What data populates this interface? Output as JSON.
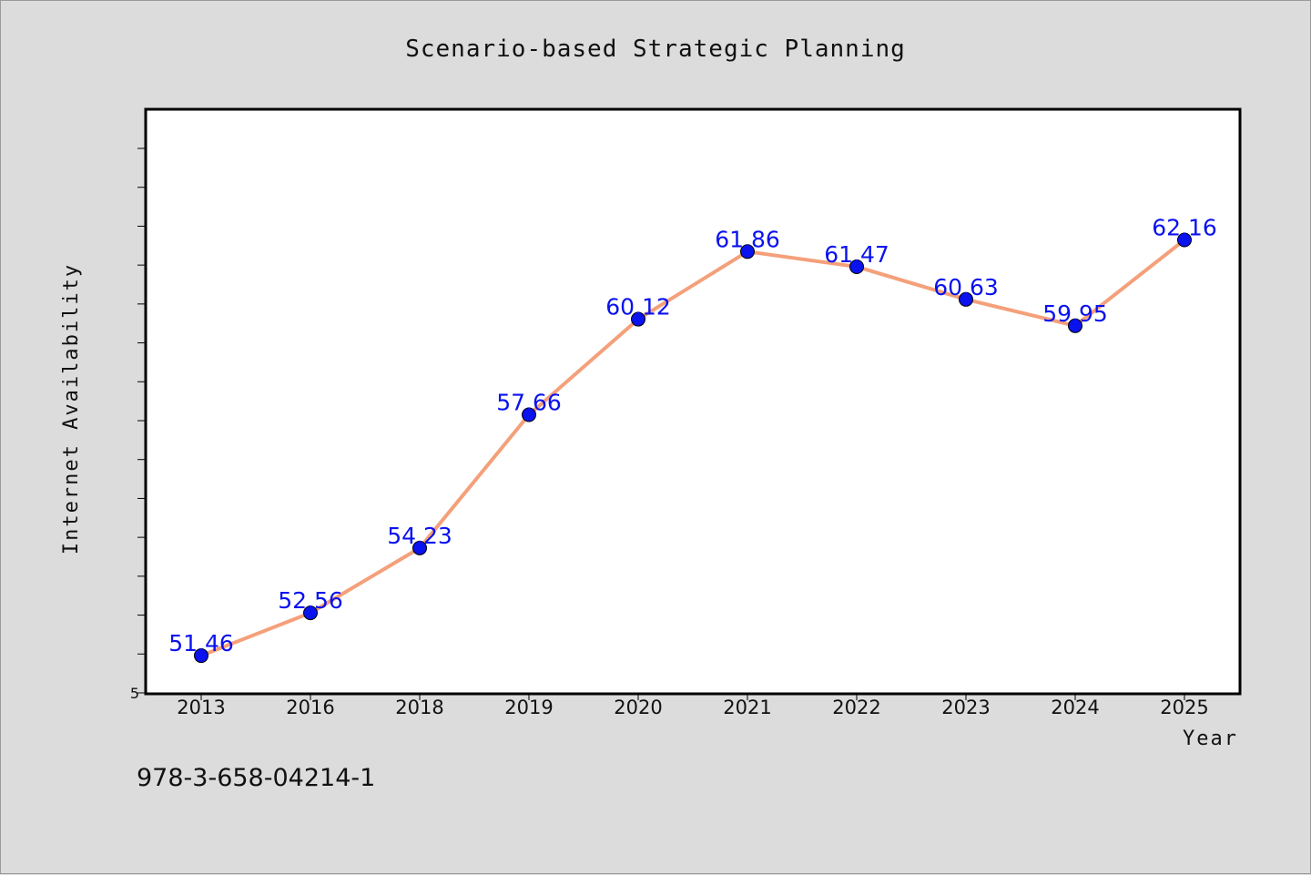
{
  "chart_data": {
    "type": "line",
    "title": "Scenario-based Strategic Planning",
    "xlabel": "Year",
    "ylabel": "Internet Availability",
    "categories": [
      "2013",
      "2016",
      "2018",
      "2019",
      "2020",
      "2021",
      "2022",
      "2023",
      "2024",
      "2025"
    ],
    "series": [
      {
        "values": [
          51.46,
          52.56,
          54.23,
          57.66,
          60.12,
          61.86,
          61.47,
          60.63,
          59.95,
          62.16
        ],
        "line_color": "#f4a07a",
        "marker_color": "#0a12ee"
      }
    ],
    "ylim": [
      50.5,
      65.5
    ],
    "ytick_labels": [
      "5"
    ],
    "grid": false,
    "legend": "none",
    "data_labels": true
  },
  "footer": {
    "isbn": "978-3-658-04214-1"
  }
}
